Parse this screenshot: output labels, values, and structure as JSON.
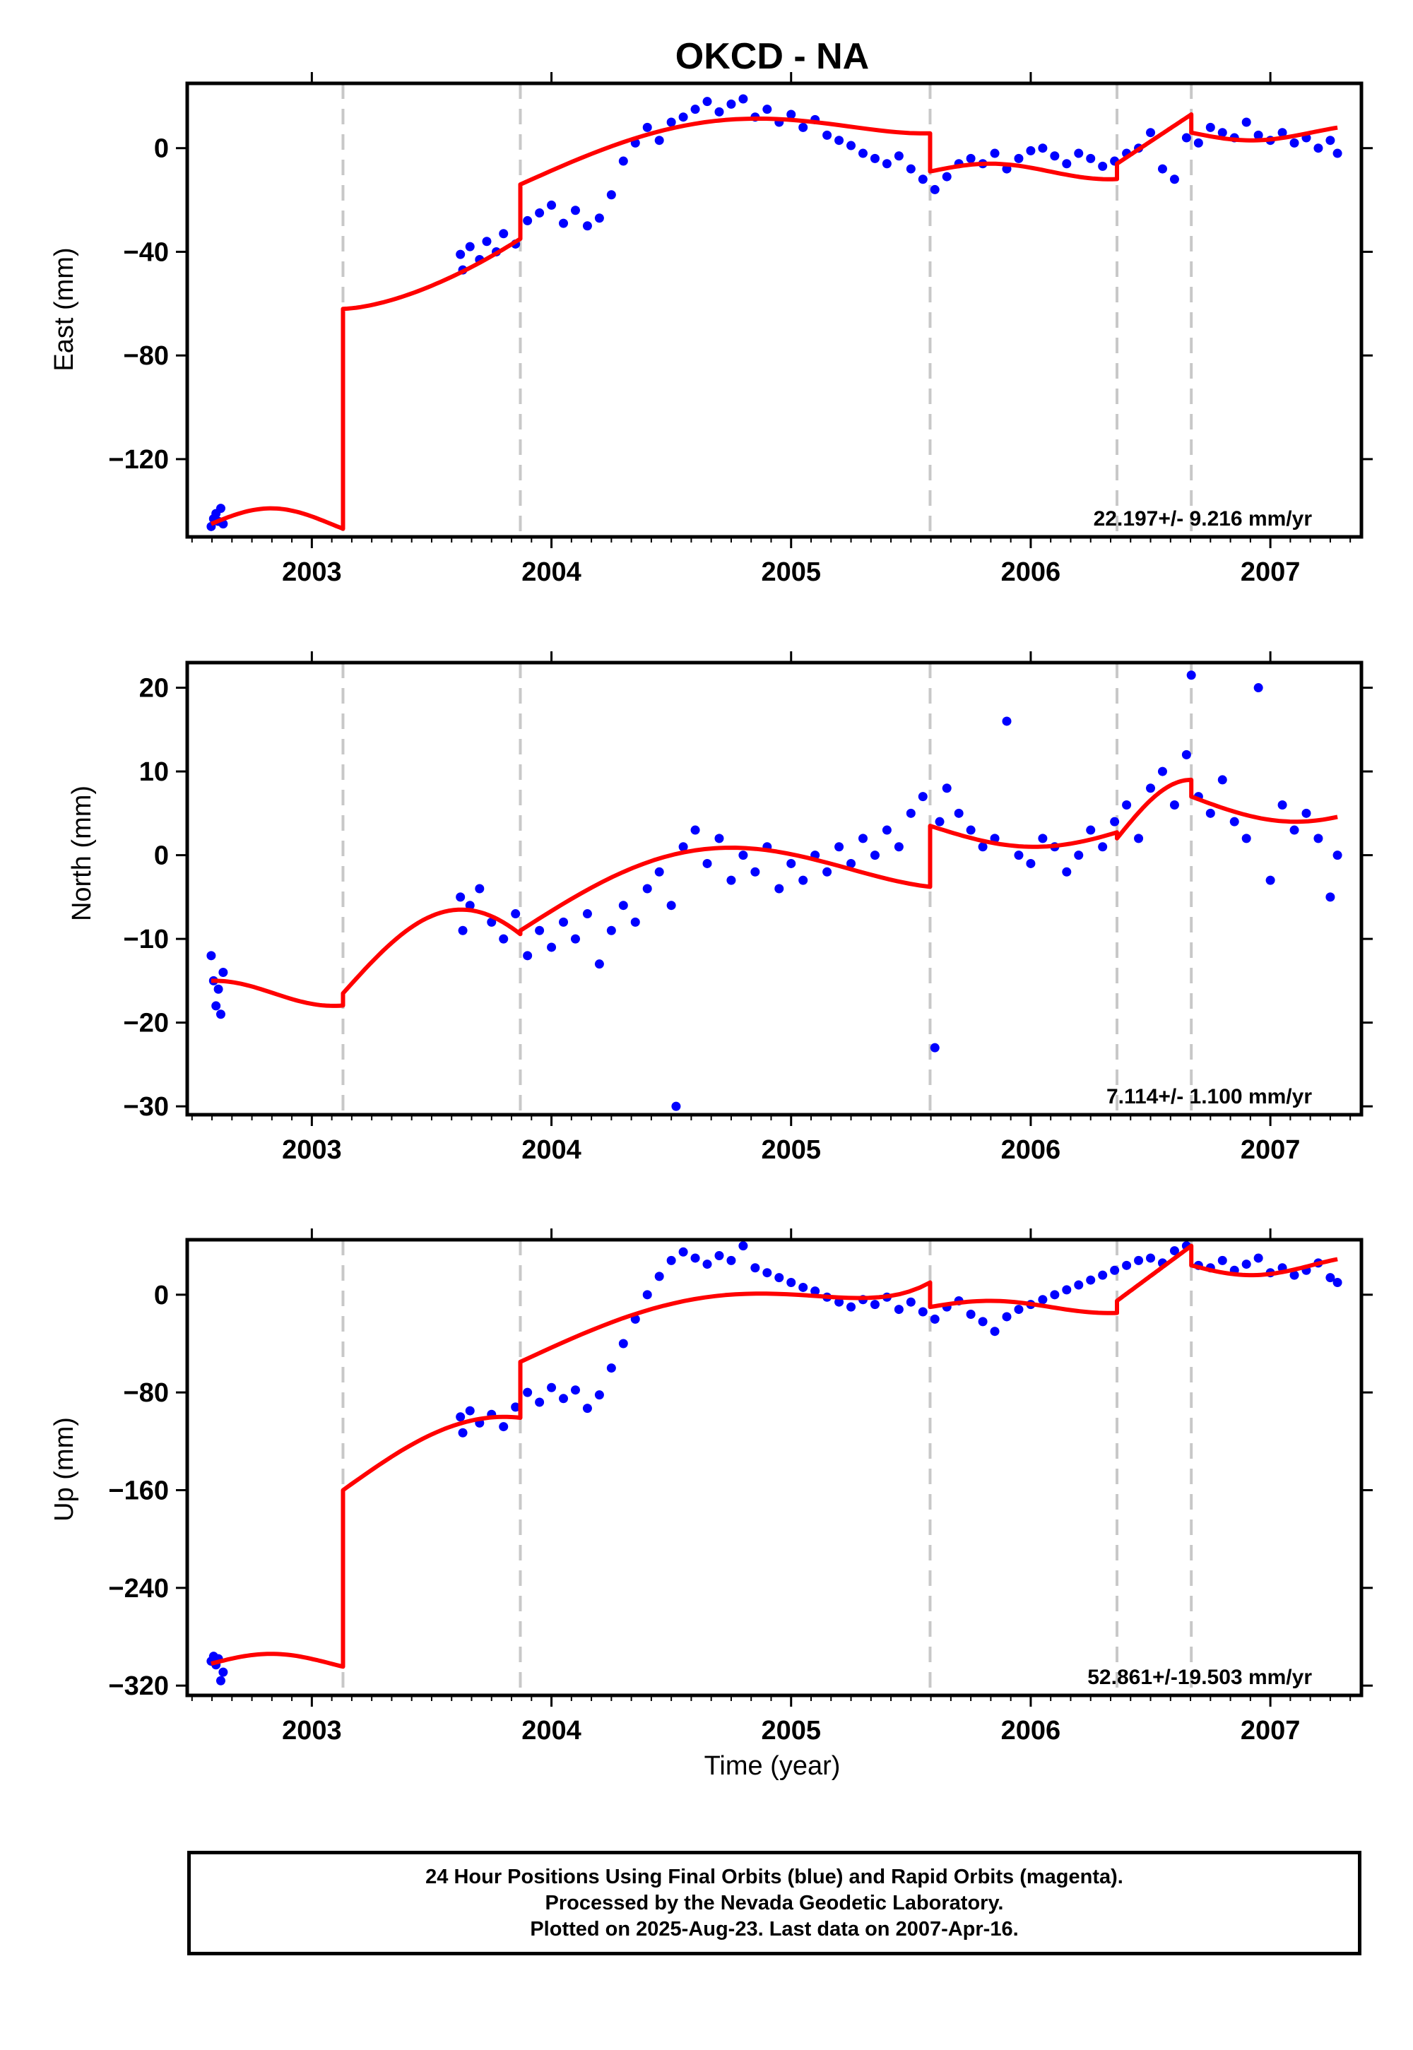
{
  "title": "OKCD - NA",
  "x_label": "Time (year)",
  "footer": {
    "line1": "24 Hour Positions Using Final Orbits (blue) and Rapid Orbits (magenta).",
    "line2": "Processed by the Nevada Geodetic Laboratory.",
    "line3": "Plotted on 2025-Aug-23. Last data on 2007-Apr-16."
  },
  "colors": {
    "points": "#0000ff",
    "model": "#ff0000",
    "steps": "#c8c8c8",
    "frame": "#000000"
  },
  "chart_data": [
    {
      "type": "scatter",
      "ylabel": "East (mm)",
      "xlim": [
        2002.48,
        2007.38
      ],
      "ylim": [
        -150,
        25
      ],
      "xticks": [
        2003,
        2004,
        2005,
        2006,
        2007
      ],
      "yticks": [
        0,
        -40,
        -80,
        -120
      ],
      "grid": false,
      "rate_text": "22.197+/- 9.216 mm/yr",
      "step_epochs": [
        2003.13,
        2003.87,
        2005.58,
        2006.36,
        2006.67
      ],
      "series": [
        {
          "points": [
            [
              2002.58,
              -146
            ],
            [
              2002.59,
              -143
            ],
            [
              2002.6,
              -141
            ],
            [
              2002.61,
              -144
            ],
            [
              2002.62,
              -139
            ],
            [
              2002.63,
              -145
            ],
            [
              2003.62,
              -41
            ],
            [
              2003.63,
              -47
            ],
            [
              2003.66,
              -38
            ],
            [
              2003.7,
              -43
            ],
            [
              2003.73,
              -36
            ],
            [
              2003.77,
              -40
            ],
            [
              2003.8,
              -33
            ],
            [
              2003.85,
              -37
            ],
            [
              2003.9,
              -28
            ],
            [
              2003.95,
              -25
            ],
            [
              2004.0,
              -22
            ],
            [
              2004.05,
              -29
            ],
            [
              2004.1,
              -24
            ],
            [
              2004.15,
              -30
            ],
            [
              2004.2,
              -27
            ],
            [
              2004.25,
              -18
            ],
            [
              2004.3,
              -5
            ],
            [
              2004.35,
              2
            ],
            [
              2004.4,
              8
            ],
            [
              2004.45,
              3
            ],
            [
              2004.5,
              10
            ],
            [
              2004.55,
              12
            ],
            [
              2004.6,
              15
            ],
            [
              2004.65,
              18
            ],
            [
              2004.7,
              14
            ],
            [
              2004.75,
              17
            ],
            [
              2004.8,
              19
            ],
            [
              2004.85,
              12
            ],
            [
              2004.9,
              15
            ],
            [
              2004.95,
              10
            ],
            [
              2005.0,
              13
            ],
            [
              2005.05,
              8
            ],
            [
              2005.1,
              11
            ],
            [
              2005.15,
              5
            ],
            [
              2005.2,
              3
            ],
            [
              2005.25,
              1
            ],
            [
              2005.3,
              -2
            ],
            [
              2005.35,
              -4
            ],
            [
              2005.4,
              -6
            ],
            [
              2005.45,
              -3
            ],
            [
              2005.5,
              -8
            ],
            [
              2005.55,
              -12
            ],
            [
              2005.6,
              -16
            ],
            [
              2005.65,
              -11
            ],
            [
              2005.7,
              -6
            ],
            [
              2005.75,
              -4
            ],
            [
              2005.8,
              -6
            ],
            [
              2005.85,
              -2
            ],
            [
              2005.9,
              -8
            ],
            [
              2005.95,
              -4
            ],
            [
              2006.0,
              -1
            ],
            [
              2006.05,
              0
            ],
            [
              2006.1,
              -3
            ],
            [
              2006.15,
              -6
            ],
            [
              2006.2,
              -2
            ],
            [
              2006.25,
              -4
            ],
            [
              2006.3,
              -7
            ],
            [
              2006.35,
              -5
            ],
            [
              2006.4,
              -2
            ],
            [
              2006.45,
              0
            ],
            [
              2006.5,
              6
            ],
            [
              2006.55,
              -8
            ],
            [
              2006.6,
              -12
            ],
            [
              2006.65,
              4
            ],
            [
              2006.7,
              2
            ],
            [
              2006.75,
              8
            ],
            [
              2006.8,
              6
            ],
            [
              2006.85,
              4
            ],
            [
              2006.9,
              10
            ],
            [
              2006.95,
              5
            ],
            [
              2007.0,
              3
            ],
            [
              2007.05,
              6
            ],
            [
              2007.1,
              2
            ],
            [
              2007.15,
              4
            ],
            [
              2007.2,
              0
            ],
            [
              2007.25,
              3
            ],
            [
              2007.28,
              -2
            ]
          ]
        }
      ]
    },
    {
      "type": "scatter",
      "ylabel": "North (mm)",
      "xlim": [
        2002.48,
        2007.38
      ],
      "ylim": [
        -31,
        23
      ],
      "xticks": [
        2003,
        2004,
        2005,
        2006,
        2007
      ],
      "yticks": [
        20,
        10,
        0,
        -10,
        -20,
        -30
      ],
      "grid": false,
      "rate_text": "7.114+/- 1.100 mm/yr",
      "step_epochs": [
        2003.13,
        2003.87,
        2005.58,
        2006.36,
        2006.67
      ],
      "series": [
        {
          "points": [
            [
              2002.58,
              -12
            ],
            [
              2002.59,
              -15
            ],
            [
              2002.6,
              -18
            ],
            [
              2002.61,
              -16
            ],
            [
              2002.62,
              -19
            ],
            [
              2002.63,
              -14
            ],
            [
              2003.62,
              -5
            ],
            [
              2003.63,
              -9
            ],
            [
              2003.66,
              -6
            ],
            [
              2003.7,
              -4
            ],
            [
              2003.75,
              -8
            ],
            [
              2003.8,
              -10
            ],
            [
              2003.85,
              -7
            ],
            [
              2003.9,
              -12
            ],
            [
              2003.95,
              -9
            ],
            [
              2004.0,
              -11
            ],
            [
              2004.05,
              -8
            ],
            [
              2004.1,
              -10
            ],
            [
              2004.15,
              -7
            ],
            [
              2004.2,
              -13
            ],
            [
              2004.25,
              -9
            ],
            [
              2004.3,
              -6
            ],
            [
              2004.35,
              -8
            ],
            [
              2004.4,
              -4
            ],
            [
              2004.45,
              -2
            ],
            [
              2004.5,
              -6
            ],
            [
              2004.52,
              -30
            ],
            [
              2004.55,
              1
            ],
            [
              2004.6,
              3
            ],
            [
              2004.65,
              -1
            ],
            [
              2004.7,
              2
            ],
            [
              2004.75,
              -3
            ],
            [
              2004.8,
              0
            ],
            [
              2004.85,
              -2
            ],
            [
              2004.9,
              1
            ],
            [
              2004.95,
              -4
            ],
            [
              2005.0,
              -1
            ],
            [
              2005.05,
              -3
            ],
            [
              2005.1,
              0
            ],
            [
              2005.15,
              -2
            ],
            [
              2005.2,
              1
            ],
            [
              2005.25,
              -1
            ],
            [
              2005.3,
              2
            ],
            [
              2005.35,
              0
            ],
            [
              2005.4,
              3
            ],
            [
              2005.45,
              1
            ],
            [
              2005.5,
              5
            ],
            [
              2005.55,
              7
            ],
            [
              2005.6,
              -23
            ],
            [
              2005.62,
              4
            ],
            [
              2005.65,
              8
            ],
            [
              2005.7,
              5
            ],
            [
              2005.75,
              3
            ],
            [
              2005.8,
              1
            ],
            [
              2005.85,
              2
            ],
            [
              2005.9,
              16
            ],
            [
              2005.95,
              0
            ],
            [
              2006.0,
              -1
            ],
            [
              2006.05,
              2
            ],
            [
              2006.1,
              1
            ],
            [
              2006.15,
              -2
            ],
            [
              2006.2,
              0
            ],
            [
              2006.25,
              3
            ],
            [
              2006.3,
              1
            ],
            [
              2006.35,
              4
            ],
            [
              2006.4,
              6
            ],
            [
              2006.45,
              2
            ],
            [
              2006.5,
              8
            ],
            [
              2006.55,
              10
            ],
            [
              2006.6,
              6
            ],
            [
              2006.65,
              12
            ],
            [
              2006.67,
              21.5
            ],
            [
              2006.7,
              7
            ],
            [
              2006.75,
              5
            ],
            [
              2006.8,
              9
            ],
            [
              2006.85,
              4
            ],
            [
              2006.9,
              2
            ],
            [
              2006.95,
              20
            ],
            [
              2007.0,
              -3
            ],
            [
              2007.05,
              6
            ],
            [
              2007.1,
              3
            ],
            [
              2007.15,
              5
            ],
            [
              2007.2,
              2
            ],
            [
              2007.25,
              -5
            ],
            [
              2007.28,
              0
            ]
          ]
        }
      ]
    },
    {
      "type": "scatter",
      "ylabel": "Up (mm)",
      "xlim": [
        2002.48,
        2007.38
      ],
      "ylim": [
        -328,
        45
      ],
      "xticks": [
        2003,
        2004,
        2005,
        2006,
        2007
      ],
      "yticks": [
        0,
        -80,
        -160,
        -240,
        -320
      ],
      "grid": false,
      "rate_text": "52.861+/-19.503 mm/yr",
      "step_epochs": [
        2003.13,
        2003.87,
        2005.58,
        2006.36,
        2006.67
      ],
      "series": [
        {
          "points": [
            [
              2002.58,
              -300
            ],
            [
              2002.59,
              -296
            ],
            [
              2002.6,
              -303
            ],
            [
              2002.61,
              -298
            ],
            [
              2002.62,
              -316
            ],
            [
              2002.63,
              -309
            ],
            [
              2003.62,
              -100
            ],
            [
              2003.63,
              -113
            ],
            [
              2003.66,
              -95
            ],
            [
              2003.7,
              -105
            ],
            [
              2003.75,
              -98
            ],
            [
              2003.8,
              -108
            ],
            [
              2003.85,
              -92
            ],
            [
              2003.9,
              -80
            ],
            [
              2003.95,
              -88
            ],
            [
              2004.0,
              -76
            ],
            [
              2004.05,
              -85
            ],
            [
              2004.1,
              -78
            ],
            [
              2004.15,
              -93
            ],
            [
              2004.2,
              -82
            ],
            [
              2004.25,
              -60
            ],
            [
              2004.3,
              -40
            ],
            [
              2004.35,
              -20
            ],
            [
              2004.4,
              0
            ],
            [
              2004.45,
              15
            ],
            [
              2004.5,
              28
            ],
            [
              2004.55,
              35
            ],
            [
              2004.6,
              30
            ],
            [
              2004.65,
              25
            ],
            [
              2004.7,
              32
            ],
            [
              2004.75,
              28
            ],
            [
              2004.8,
              40
            ],
            [
              2004.85,
              22
            ],
            [
              2004.9,
              18
            ],
            [
              2004.95,
              14
            ],
            [
              2005.0,
              10
            ],
            [
              2005.05,
              6
            ],
            [
              2005.1,
              3
            ],
            [
              2005.15,
              -2
            ],
            [
              2005.2,
              -6
            ],
            [
              2005.25,
              -10
            ],
            [
              2005.3,
              -4
            ],
            [
              2005.35,
              -8
            ],
            [
              2005.4,
              -2
            ],
            [
              2005.45,
              -12
            ],
            [
              2005.5,
              -6
            ],
            [
              2005.55,
              -14
            ],
            [
              2005.6,
              -20
            ],
            [
              2005.65,
              -10
            ],
            [
              2005.7,
              -5
            ],
            [
              2005.75,
              -16
            ],
            [
              2005.8,
              -22
            ],
            [
              2005.85,
              -30
            ],
            [
              2005.9,
              -18
            ],
            [
              2005.95,
              -12
            ],
            [
              2006.0,
              -8
            ],
            [
              2006.05,
              -4
            ],
            [
              2006.1,
              0
            ],
            [
              2006.15,
              4
            ],
            [
              2006.2,
              8
            ],
            [
              2006.25,
              12
            ],
            [
              2006.3,
              16
            ],
            [
              2006.35,
              20
            ],
            [
              2006.4,
              24
            ],
            [
              2006.45,
              28
            ],
            [
              2006.5,
              30
            ],
            [
              2006.55,
              26
            ],
            [
              2006.6,
              36
            ],
            [
              2006.65,
              40
            ],
            [
              2006.7,
              24
            ],
            [
              2006.75,
              22
            ],
            [
              2006.8,
              28
            ],
            [
              2006.85,
              20
            ],
            [
              2006.9,
              25
            ],
            [
              2006.95,
              30
            ],
            [
              2007.0,
              18
            ],
            [
              2007.05,
              22
            ],
            [
              2007.1,
              16
            ],
            [
              2007.15,
              20
            ],
            [
              2007.2,
              26
            ],
            [
              2007.25,
              14
            ],
            [
              2007.28,
              10
            ]
          ]
        }
      ]
    }
  ]
}
